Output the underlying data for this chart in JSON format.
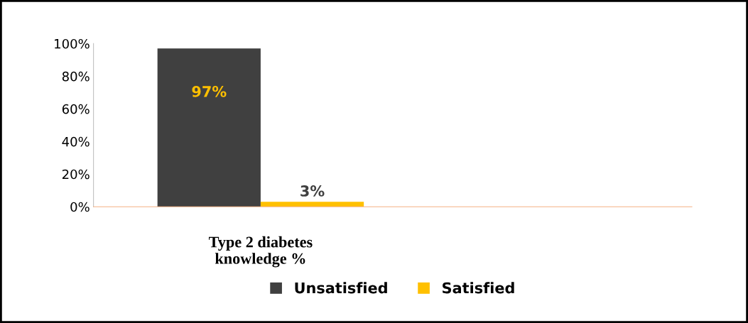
{
  "chart_data": {
    "type": "bar",
    "categories": [
      "Type 2 diabetes\nknowledge %"
    ],
    "series": [
      {
        "name": "Unsatisfied",
        "color": "#404040",
        "values": [
          97
        ],
        "value_labels": [
          "97%"
        ]
      },
      {
        "name": "Satisfied",
        "color": "#ffc000",
        "values": [
          3
        ],
        "value_labels": [
          "3%"
        ]
      }
    ],
    "ylim": [
      0,
      100
    ],
    "yticks": [
      {
        "value": 0,
        "label": "0%"
      },
      {
        "value": 20,
        "label": "20%"
      },
      {
        "value": 40,
        "label": "40%"
      },
      {
        "value": 60,
        "label": "60%"
      },
      {
        "value": 80,
        "label": "80%"
      },
      {
        "value": 100,
        "label": "100%"
      }
    ],
    "grid": false,
    "legend": "bottom"
  }
}
